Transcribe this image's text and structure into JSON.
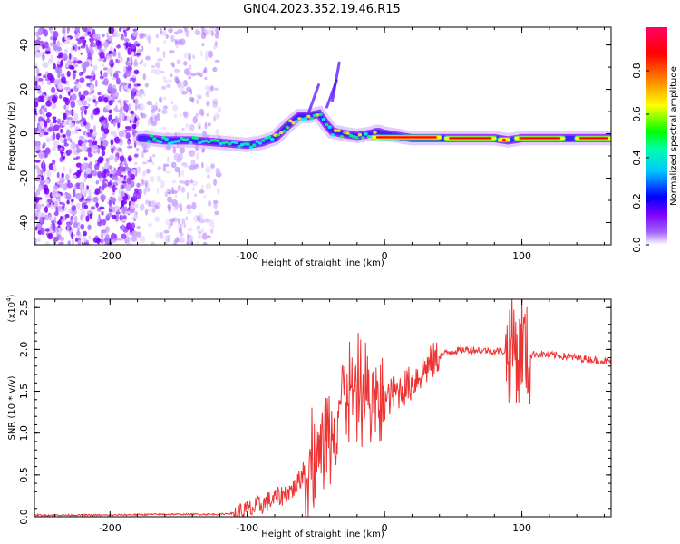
{
  "figure_title": "GN04.2023.352.19.46.R15",
  "chart_data": [
    {
      "type": "heatmap",
      "title": "",
      "xlabel": "Height of straight line (km)",
      "ylabel": "Frequency (Hz)",
      "xlim": [
        -255,
        165
      ],
      "ylim": [
        -50,
        48
      ],
      "xticks": [
        -200,
        -100,
        0,
        100
      ],
      "xtick_labels": [
        "-200",
        "-100",
        "0",
        "100"
      ],
      "yticks": [
        -40,
        -20,
        0,
        20,
        40
      ],
      "ytick_labels": [
        "-40",
        "-20",
        "0",
        "20",
        "40"
      ],
      "ridge": {
        "x": [
          -175,
          -160,
          -140,
          -120,
          -100,
          -90,
          -80,
          -70,
          -62,
          -55,
          -48,
          -42,
          -38,
          -30,
          -20,
          -10,
          -5,
          0,
          20,
          50,
          80,
          90,
          100,
          120,
          140,
          165
        ],
        "y": [
          -2,
          -3,
          -3,
          -4,
          -5,
          -4,
          -2,
          4,
          8,
          8,
          9,
          4,
          1,
          0,
          -1,
          0,
          1,
          0,
          -2,
          -2,
          -2,
          -3,
          -2,
          -2,
          -2,
          -2
        ]
      },
      "noise_region_x": [
        -255,
        -120
      ],
      "colorbar": {
        "label": "Normalized spectral amplitude",
        "range": [
          0,
          1
        ],
        "ticks": [
          0.0,
          0.2,
          0.4,
          0.6,
          0.8
        ],
        "tick_labels": [
          "0.0",
          "0.2",
          "0.4",
          "0.6",
          "0.8"
        ],
        "colors": [
          "#ffffff",
          "#7c00ff",
          "#0000ff",
          "#00ffff",
          "#00ff00",
          "#ffff00",
          "#ff8000",
          "#ff0000",
          "#ff0066"
        ]
      }
    },
    {
      "type": "line",
      "title": "",
      "xlabel": "Height of straight line (km)",
      "ylabel": "SNR (10 * v/v)",
      "scale_label_base": "(x10",
      "scale_label_exp": "4",
      "scale_label_close": ")",
      "xlim": [
        -255,
        165
      ],
      "ylim": [
        0,
        2.6
      ],
      "xticks": [
        -200,
        -100,
        0,
        100
      ],
      "xtick_labels": [
        "-200",
        "-100",
        "0",
        "100"
      ],
      "yticks": [
        0.0,
        0.5,
        1.0,
        1.5,
        2.0,
        2.5
      ],
      "ytick_labels": [
        "0.0",
        "0.5",
        "1.0",
        "1.5",
        "2.0",
        "2.5"
      ],
      "series": [
        {
          "name": "SNR",
          "color": "#ee3333",
          "x": [
            -255,
            -200,
            -160,
            -120,
            -105,
            -95,
            -85,
            -75,
            -65,
            -58,
            -52,
            -47,
            -43,
            -39,
            -35,
            -31,
            -28,
            -25,
            -22,
            -18,
            -15,
            -12,
            -8,
            -5,
            -2,
            2,
            5,
            10,
            15,
            20,
            25,
            30,
            35,
            40,
            45,
            50,
            60,
            70,
            80,
            90,
            95,
            98,
            100,
            103,
            110,
            130,
            150,
            165
          ],
          "y": [
            0.02,
            0.02,
            0.03,
            0.03,
            0.05,
            0.1,
            0.18,
            0.25,
            0.35,
            0.55,
            0.75,
            0.85,
            0.95,
            1.1,
            1.25,
            1.45,
            1.55,
            1.45,
            1.55,
            1.5,
            1.45,
            1.4,
            1.35,
            1.35,
            1.35,
            1.4,
            1.45,
            1.5,
            1.55,
            1.6,
            1.7,
            1.78,
            1.85,
            1.92,
            1.96,
            1.98,
            2.0,
            1.99,
            1.98,
            1.98,
            2.1,
            1.8,
            2.2,
            1.9,
            1.95,
            1.92,
            1.88,
            1.85
          ]
        }
      ]
    }
  ]
}
